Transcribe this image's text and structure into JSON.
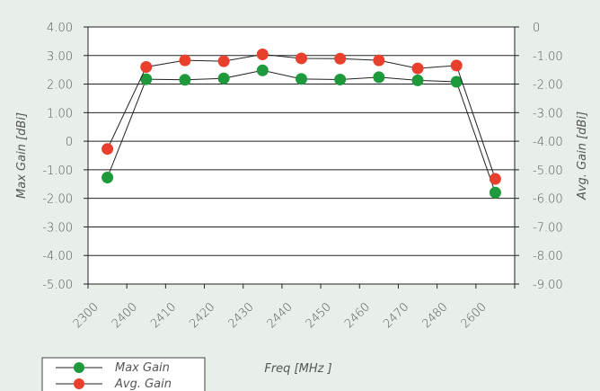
{
  "chart_data": {
    "type": "line",
    "title": "",
    "xlabel": "Freq [MHz ]",
    "ylabel": "Max Gain [dBi]",
    "y2label": "Avg. Gain [dBi]",
    "categories": [
      "2300",
      "2400",
      "2410",
      "2420",
      "2430",
      "2440",
      "2450",
      "2460",
      "2470",
      "2480",
      "2600"
    ],
    "ylim": [
      -5.0,
      4.0
    ],
    "y2lim": [
      -9.0,
      0
    ],
    "yticks": [
      "4.00",
      "3.00",
      "2.00",
      "1.00",
      "0",
      "-1.00",
      "-2.00",
      "-3.00",
      "-4.00",
      "-5.00"
    ],
    "y2ticks": [
      "0",
      "-1.00",
      "-2.00",
      "-3.00",
      "-4.00",
      "-5.00",
      "-6.00",
      "-7.00",
      "-8.00",
      "-9.00"
    ],
    "grid": true,
    "legend_position": "bottom-left",
    "series": [
      {
        "name": "Max Gain",
        "axis": "left",
        "color": "#1e9a3c",
        "x": [
          2300.5,
          2400.5,
          2410.5,
          2420.5,
          2430.5,
          2440.5,
          2450.5,
          2460.5,
          2470.5,
          2480.5,
          2600.5
        ],
        "values": [
          -1.27,
          2.17,
          2.15,
          2.2,
          2.48,
          2.18,
          2.16,
          2.24,
          2.13,
          2.08,
          -1.8
        ]
      },
      {
        "name": "Avg. Gain",
        "axis": "right",
        "color": "#e8402c",
        "x": [
          2300.5,
          2400.5,
          2410.5,
          2420.5,
          2430.5,
          2440.5,
          2450.5,
          2460.5,
          2470.5,
          2480.5,
          2600.5
        ],
        "values": [
          -4.27,
          -1.4,
          -1.17,
          -1.2,
          -0.96,
          -1.1,
          -1.11,
          -1.17,
          -1.45,
          -1.35,
          -5.32
        ]
      }
    ]
  }
}
